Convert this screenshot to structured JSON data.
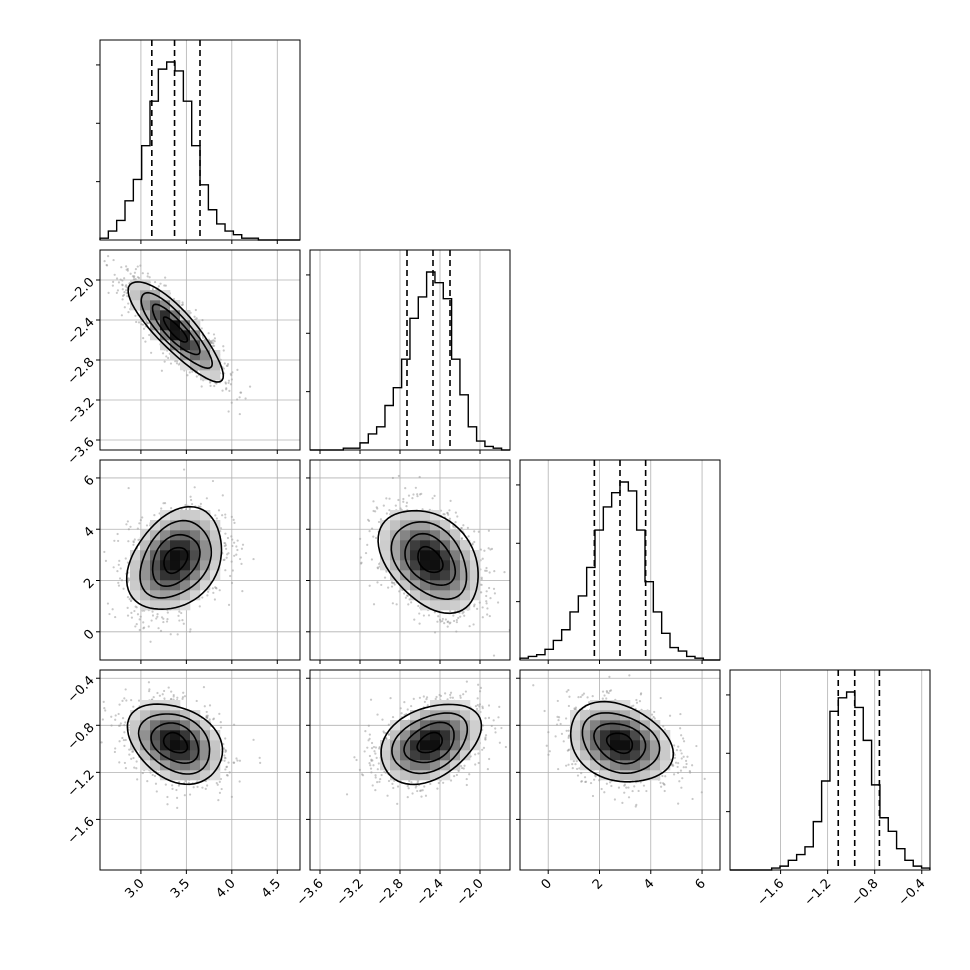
{
  "chart_data": {
    "type": "corner",
    "grid": true,
    "params": [
      {
        "range": [
          2.55,
          4.75
        ],
        "ticks": [
          "3.0",
          "3.5",
          "4.0",
          "4.5"
        ],
        "tick_values": [
          3.0,
          3.5,
          4.0,
          4.5
        ],
        "quantiles": [
          3.12,
          3.37,
          3.65
        ],
        "hist_edges_start": 2.55,
        "hist_bin_width": 0.0917,
        "hist_counts": [
          0.01,
          0.05,
          0.11,
          0.22,
          0.34,
          0.53,
          0.78,
          0.96,
          1.0,
          0.95,
          0.78,
          0.53,
          0.31,
          0.17,
          0.09,
          0.05,
          0.03,
          0.01,
          0.01,
          0.0,
          0.0,
          0.0,
          0.0,
          0.0
        ]
      },
      {
        "range": [
          -3.7,
          -1.7
        ],
        "ticks": [
          "−3.6",
          "−3.2",
          "−2.8",
          "−2.4",
          "−2.0"
        ],
        "tick_values": [
          -3.6,
          -3.2,
          -2.8,
          -2.4,
          -2.0
        ],
        "quantiles": [
          -2.73,
          -2.47,
          -2.3
        ],
        "hist_edges_start": -3.7,
        "hist_bin_width": 0.0833,
        "hist_counts": [
          0.0,
          0.0,
          0.0,
          0.0,
          0.01,
          0.01,
          0.04,
          0.09,
          0.13,
          0.25,
          0.35,
          0.51,
          0.74,
          0.86,
          1.0,
          0.94,
          0.85,
          0.51,
          0.31,
          0.13,
          0.05,
          0.02,
          0.01,
          0.0
        ]
      },
      {
        "range": [
          -1.1,
          6.7
        ],
        "ticks": [
          "0",
          "2",
          "4",
          "6"
        ],
        "tick_values": [
          0,
          2,
          4,
          6
        ],
        "quantiles": [
          1.8,
          2.8,
          3.8
        ],
        "hist_edges_start": -1.1,
        "hist_bin_width": 0.325,
        "hist_counts": [
          0.01,
          0.02,
          0.03,
          0.06,
          0.11,
          0.17,
          0.27,
          0.36,
          0.52,
          0.73,
          0.86,
          0.94,
          1.0,
          0.95,
          0.73,
          0.44,
          0.27,
          0.15,
          0.07,
          0.05,
          0.02,
          0.01,
          0.0,
          0.0
        ]
      },
      {
        "range": [
          -2.03,
          -0.33
        ],
        "ticks": [
          "−1.6",
          "−1.2",
          "−0.8",
          "−0.4"
        ],
        "tick_values": [
          -1.6,
          -1.2,
          -0.8,
          -0.4
        ],
        "quantiles": [
          -1.11,
          -0.97,
          -0.76
        ],
        "hist_edges_start": -2.03,
        "hist_bin_width": 0.0708,
        "hist_counts": [
          0.0,
          0.0,
          0.0,
          0.0,
          0.0,
          0.01,
          0.02,
          0.05,
          0.08,
          0.12,
          0.25,
          0.46,
          0.82,
          0.89,
          0.92,
          0.84,
          0.67,
          0.44,
          0.27,
          0.2,
          0.11,
          0.05,
          0.02,
          0.01
        ]
      }
    ],
    "pairs": [
      {
        "x": 0,
        "y": 1,
        "mean": [
          3.38,
          -2.5
        ],
        "sd": [
          0.26,
          0.25
        ],
        "rho": -0.85
      },
      {
        "x": 0,
        "y": 2,
        "mean": [
          3.38,
          2.8
        ],
        "sd": [
          0.26,
          1.0
        ],
        "rho": 0.3
      },
      {
        "x": 1,
        "y": 2,
        "mean": [
          -2.5,
          2.8
        ],
        "sd": [
          0.25,
          1.0
        ],
        "rho": -0.35
      },
      {
        "x": 0,
        "y": 3,
        "mean": [
          3.38,
          -0.95
        ],
        "sd": [
          0.26,
          0.17
        ],
        "rho": -0.3
      },
      {
        "x": 1,
        "y": 3,
        "mean": [
          -2.5,
          -0.95
        ],
        "sd": [
          0.25,
          0.17
        ],
        "rho": 0.35
      },
      {
        "x": 2,
        "y": 3,
        "mean": [
          2.8,
          -0.95
        ],
        "sd": [
          1.0,
          0.17
        ],
        "rho": -0.25
      }
    ]
  }
}
